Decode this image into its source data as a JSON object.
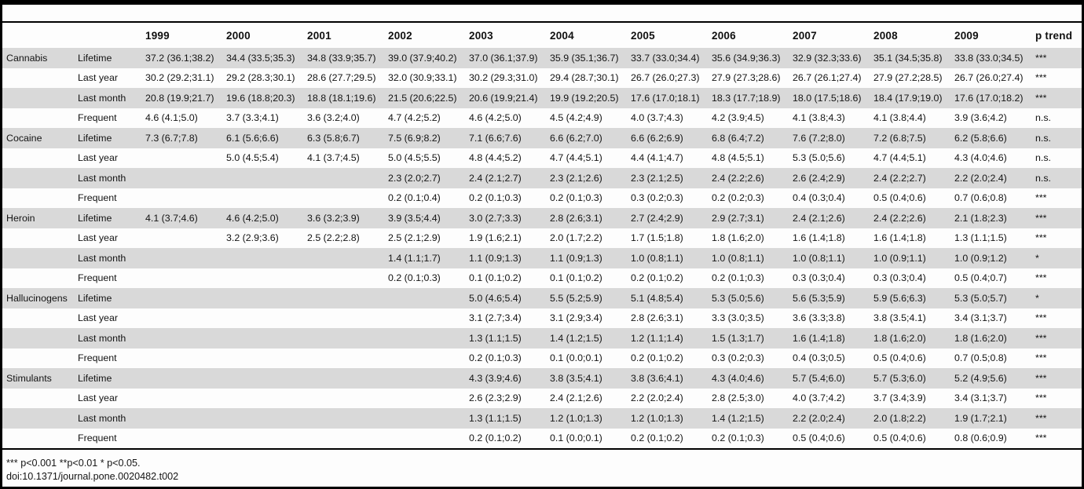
{
  "table": {
    "years": [
      "1999",
      "2000",
      "2001",
      "2002",
      "2003",
      "2004",
      "2005",
      "2006",
      "2007",
      "2008",
      "2009"
    ],
    "p_trend_label": "p trend",
    "groups": [
      {
        "drug": "Cannabis",
        "rows": [
          {
            "measure": "Lifetime",
            "values": [
              "37.2 (36.1;38.2)",
              "34.4 (33.5;35.3)",
              "34.8 (33.9;35.7)",
              "39.0 (37.9;40.2)",
              "37.0 (36.1;37.9)",
              "35.9 (35.1;36.7)",
              "33.7 (33.0;34.4)",
              "35.6 (34.9;36.3)",
              "32.9 (32.3;33.6)",
              "35.1 (34.5;35.8)",
              "33.8 (33.0;34.5)"
            ],
            "p": "***"
          },
          {
            "measure": "Last year",
            "values": [
              "30.2 (29.2;31.1)",
              "29.2 (28.3;30.1)",
              "28.6 (27.7;29.5)",
              "32.0 (30.9;33.1)",
              "30.2 (29.3;31.0)",
              "29.4 (28.7;30.1)",
              "26.7 (26.0;27.3)",
              "27.9 (27.3;28.6)",
              "26.7 (26.1;27.4)",
              "27.9 (27.2;28.5)",
              "26.7 (26.0;27.4)"
            ],
            "p": "***"
          },
          {
            "measure": "Last month",
            "values": [
              "20.8 (19.9;21.7)",
              "19.6 (18.8;20.3)",
              "18.8 (18.1;19.6)",
              "21.5 (20.6;22.5)",
              "20.6 (19.9;21.4)",
              "19.9 (19.2;20.5)",
              "17.6 (17.0;18.1)",
              "18.3 (17.7;18.9)",
              "18.0 (17.5;18.6)",
              "18.4 (17.9;19.0)",
              "17.6 (17.0;18.2)"
            ],
            "p": "***"
          },
          {
            "measure": "Frequent",
            "values": [
              "4.6 (4.1;5.0)",
              "3.7 (3.3;4.1)",
              "3.6 (3.2;4.0)",
              "4.7 (4.2;5.2)",
              "4.6 (4.2;5.0)",
              "4.5 (4.2;4.9)",
              "4.0 (3.7;4.3)",
              "4.2 (3.9;4.5)",
              "4.1 (3.8;4.3)",
              "4.1 (3.8;4.4)",
              "3.9 (3.6;4.2)"
            ],
            "p": "n.s."
          }
        ]
      },
      {
        "drug": "Cocaine",
        "rows": [
          {
            "measure": "Lifetime",
            "values": [
              "7.3 (6.7;7.8)",
              "6.1 (5.6;6.6)",
              "6.3 (5.8;6.7)",
              "7.5 (6.9;8.2)",
              "7.1 (6.6;7.6)",
              "6.6 (6.2;7.0)",
              "6.6 (6.2;6.9)",
              "6.8 (6.4;7.2)",
              "7.6 (7.2;8.0)",
              "7.2 (6.8;7.5)",
              "6.2 (5.8;6.6)"
            ],
            "p": "n.s."
          },
          {
            "measure": "Last year",
            "values": [
              "",
              "5.0 (4.5;5.4)",
              "4.1 (3.7;4.5)",
              "5.0 (4.5;5.5)",
              "4.8 (4.4;5.2)",
              "4.7 (4.4;5.1)",
              "4.4 (4.1;4.7)",
              "4.8 (4.5;5.1)",
              "5.3 (5.0;5.6)",
              "4.7 (4.4;5.1)",
              "4.3 (4.0;4.6)"
            ],
            "p": "n.s."
          },
          {
            "measure": "Last month",
            "values": [
              "",
              "",
              "",
              "2.3 (2.0;2.7)",
              "2.4 (2.1;2.7)",
              "2.3 (2.1;2.6)",
              "2.3 (2.1;2.5)",
              "2.4 (2.2;2.6)",
              "2.6 (2.4;2.9)",
              "2.4 (2.2;2.7)",
              "2.2 (2.0;2.4)"
            ],
            "p": "n.s."
          },
          {
            "measure": "Frequent",
            "values": [
              "",
              "",
              "",
              "0.2 (0.1;0.4)",
              "0.2 (0.1;0.3)",
              "0.2 (0.1;0.3)",
              "0.3 (0.2;0.3)",
              "0.2 (0.2;0.3)",
              "0.4 (0.3;0.4)",
              "0.5 (0.4;0.6)",
              "0.7 (0.6;0.8)"
            ],
            "p": "***"
          }
        ]
      },
      {
        "drug": "Heroin",
        "rows": [
          {
            "measure": "Lifetime",
            "values": [
              "4.1 (3.7;4.6)",
              "4.6 (4.2;5.0)",
              "3.6 (3.2;3.9)",
              "3.9 (3.5;4.4)",
              "3.0 (2.7;3.3)",
              "2.8 (2.6;3.1)",
              "2.7 (2.4;2.9)",
              "2.9 (2.7;3.1)",
              "2.4 (2.1;2.6)",
              "2.4 (2.2;2.6)",
              "2.1 (1.8;2.3)"
            ],
            "p": "***"
          },
          {
            "measure": "Last year",
            "values": [
              "",
              "3.2 (2.9;3.6)",
              "2.5 (2.2;2.8)",
              "2.5 (2.1;2.9)",
              "1.9 (1.6;2.1)",
              "2.0 (1.7;2.2)",
              "1.7 (1.5;1.8)",
              "1.8 (1.6;2.0)",
              "1.6 (1.4;1.8)",
              "1.6 (1.4;1.8)",
              "1.3 (1.1;1.5)"
            ],
            "p": "***"
          },
          {
            "measure": "Last month",
            "values": [
              "",
              "",
              "",
              "1.4 (1.1;1.7)",
              "1.1 (0.9;1.3)",
              "1.1 (0.9;1.3)",
              "1.0 (0.8;1.1)",
              "1.0 (0.8;1.1)",
              "1.0 (0.8;1.1)",
              "1.0 (0.9;1.1)",
              "1.0 (0.9;1.2)"
            ],
            "p": "*"
          },
          {
            "measure": "Frequent",
            "values": [
              "",
              "",
              "",
              "0.2 (0.1;0.3)",
              "0.1 (0.1;0.2)",
              "0.1 (0.1;0.2)",
              "0.2 (0.1;0.2)",
              "0.2 (0.1;0.3)",
              "0.3 (0.3;0.4)",
              "0.3 (0.3;0.4)",
              "0.5 (0.4;0.7)"
            ],
            "p": "***"
          }
        ]
      },
      {
        "drug": "Hallucinogens",
        "rows": [
          {
            "measure": "Lifetime",
            "values": [
              "",
              "",
              "",
              "",
              "5.0 (4.6;5.4)",
              "5.5 (5.2;5.9)",
              "5.1 (4.8;5.4)",
              "5.3 (5.0;5.6)",
              "5.6 (5.3;5.9)",
              "5.9 (5.6;6.3)",
              "5.3 (5.0;5.7)"
            ],
            "p": "*"
          },
          {
            "measure": "Last year",
            "values": [
              "",
              "",
              "",
              "",
              "3.1 (2.7;3.4)",
              "3.1 (2.9;3.4)",
              "2.8 (2.6;3.1)",
              "3.3 (3.0;3.5)",
              "3.6 (3.3;3.8)",
              "3.8 (3.5;4.1)",
              "3.4 (3.1;3.7)"
            ],
            "p": "***"
          },
          {
            "measure": "Last month",
            "values": [
              "",
              "",
              "",
              "",
              "1.3 (1.1;1.5)",
              "1.4 (1.2;1.5)",
              "1.2 (1.1;1.4)",
              "1.5 (1.3;1.7)",
              "1.6 (1.4;1.8)",
              "1.8 (1.6;2.0)",
              "1.8 (1.6;2.0)"
            ],
            "p": "***"
          },
          {
            "measure": "Frequent",
            "values": [
              "",
              "",
              "",
              "",
              "0.2 (0.1;0.3)",
              "0.1 (0.0;0.1)",
              "0.2 (0.1;0.2)",
              "0.3 (0.2;0.3)",
              "0.4 (0.3;0.5)",
              "0.5 (0.4;0.6)",
              "0.7 (0.5;0.8)"
            ],
            "p": "***"
          }
        ]
      },
      {
        "drug": "Stimulants",
        "rows": [
          {
            "measure": "Lifetime",
            "values": [
              "",
              "",
              "",
              "",
              "4.3 (3.9;4.6)",
              "3.8 (3.5;4.1)",
              "3.8 (3.6;4.1)",
              "4.3 (4.0;4.6)",
              "5.7 (5.4;6.0)",
              "5.7 (5.3;6.0)",
              "5.2 (4.9;5.6)"
            ],
            "p": "***"
          },
          {
            "measure": "Last year",
            "values": [
              "",
              "",
              "",
              "",
              "2.6 (2.3;2.9)",
              "2.4 (2.1;2.6)",
              "2.2 (2.0;2.4)",
              "2.8 (2.5;3.0)",
              "4.0 (3.7;4.2)",
              "3.7 (3.4;3.9)",
              "3.4 (3.1;3.7)"
            ],
            "p": "***"
          },
          {
            "measure": "Last month",
            "values": [
              "",
              "",
              "",
              "",
              "1.3 (1.1;1.5)",
              "1.2 (1.0;1.3)",
              "1.2 (1.0;1.3)",
              "1.4 (1.2;1.5)",
              "2.2 (2.0;2.4)",
              "2.0 (1.8;2.2)",
              "1.9 (1.7;2.1)"
            ],
            "p": "***"
          },
          {
            "measure": "Frequent",
            "values": [
              "",
              "",
              "",
              "",
              "0.2 (0.1;0.2)",
              "0.1 (0.0;0.1)",
              "0.2 (0.1;0.2)",
              "0.2 (0.1;0.3)",
              "0.5 (0.4;0.6)",
              "0.5 (0.4;0.6)",
              "0.8 (0.6;0.9)"
            ],
            "p": "***"
          }
        ]
      }
    ]
  },
  "footnotes": {
    "significance": "*** p<0.001 **p<0.01 * p<0.05.",
    "doi": "doi:10.1371/journal.pone.0020482.t002"
  }
}
